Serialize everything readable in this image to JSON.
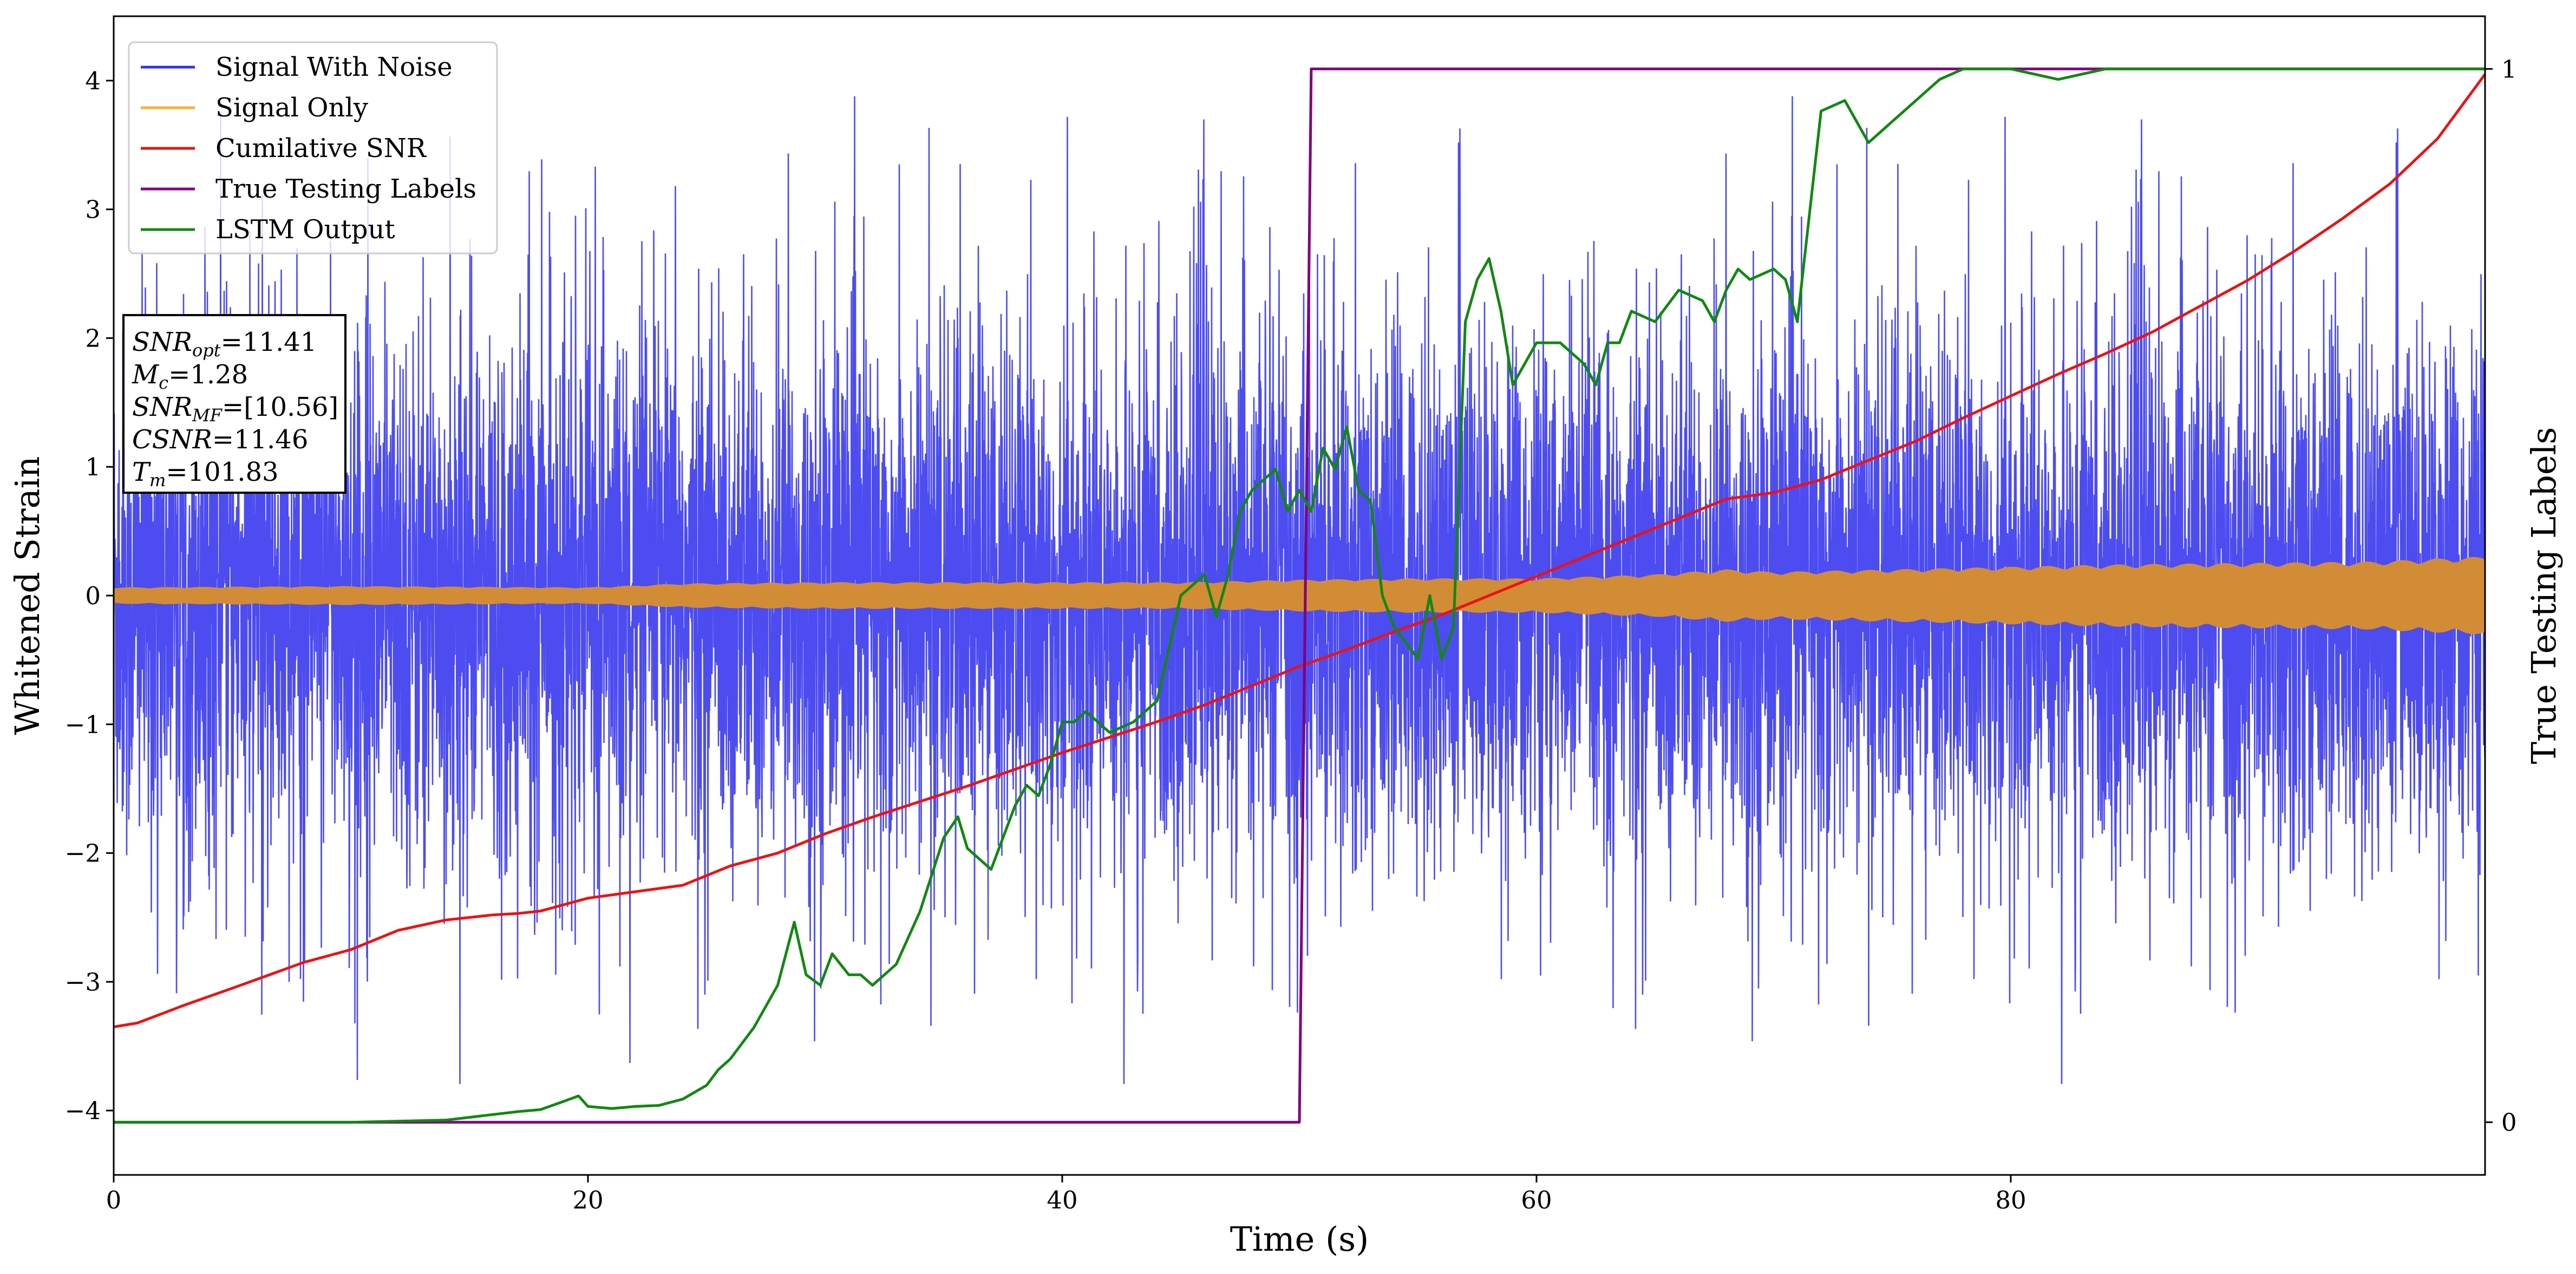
{
  "chart_data": {
    "type": "line",
    "xlabel": "Time (s)",
    "ylabel_left": "Whitened Strain",
    "ylabel_right": "True Testing Labels",
    "xlim": [
      0,
      100
    ],
    "ylim_left": [
      -4.5,
      4.5
    ],
    "ylim_right": [
      -0.05,
      1.05
    ],
    "x_ticks": [
      0,
      20,
      40,
      60,
      80
    ],
    "y_ticks_left": [
      -4,
      -3,
      -2,
      -1,
      0,
      1,
      2,
      3,
      4
    ],
    "y_ticks_right": [
      0,
      1
    ],
    "grid": false,
    "legend_position": "upper-left",
    "legend": [
      {
        "name": "Signal With Noise",
        "color": "#3333ee"
      },
      {
        "name": "Signal Only",
        "color": "#f5b335"
      },
      {
        "name": "Cumilative SNR",
        "color": "#ee1111"
      },
      {
        "name": "True Testing Labels",
        "color": "#800080"
      },
      {
        "name": "LSTM Output",
        "color": "#118811"
      }
    ],
    "annotation": [
      {
        "base": "SNR",
        "sub": "opt",
        "value": "=11.41"
      },
      {
        "base": "M",
        "sub": "c",
        "value": "=1.28"
      },
      {
        "base": "SNR",
        "sub": "MF",
        "value": "=[10.56]"
      },
      {
        "base": "CSNR",
        "sub": "",
        "value": "=11.46"
      },
      {
        "base": "T",
        "sub": "m",
        "value": "=101.83"
      }
    ],
    "series": [
      {
        "name": "Signal With Noise",
        "axis": "left",
        "color": "#3333ee",
        "style": "dense-noise",
        "typical_amplitude": 1.3,
        "max_amplitude": 4.0,
        "x_range": [
          0,
          100
        ]
      },
      {
        "name": "Signal Only",
        "axis": "left",
        "color": "#f5b335",
        "style": "envelope",
        "x": [
          0,
          10,
          20,
          24,
          30,
          40,
          45,
          50,
          55,
          60,
          65,
          68,
          70,
          75,
          80,
          85,
          90,
          95,
          100
        ],
        "amplitude": [
          0.06,
          0.07,
          0.06,
          0.09,
          0.1,
          0.1,
          0.1,
          0.12,
          0.13,
          0.13,
          0.16,
          0.2,
          0.18,
          0.2,
          0.22,
          0.24,
          0.25,
          0.26,
          0.3
        ]
      },
      {
        "name": "Cumilative SNR",
        "axis": "left",
        "color": "#ee1111",
        "x": [
          0,
          1,
          2,
          3,
          5,
          8,
          10,
          12,
          14,
          16,
          17,
          18,
          20,
          22,
          24,
          26,
          28,
          30,
          32,
          34,
          36,
          38,
          40,
          42,
          44,
          46,
          48,
          50,
          52,
          54,
          56,
          58,
          60,
          62,
          64,
          66,
          68,
          70,
          72,
          74,
          76,
          78,
          80,
          82,
          84,
          86,
          88,
          90,
          92,
          94,
          96,
          98,
          100
        ],
        "y": [
          -3.35,
          -3.32,
          -3.25,
          -3.18,
          -3.05,
          -2.85,
          -2.75,
          -2.6,
          -2.52,
          -2.48,
          -2.47,
          -2.45,
          -2.35,
          -2.3,
          -2.25,
          -2.1,
          -2.0,
          -1.85,
          -1.72,
          -1.6,
          -1.48,
          -1.35,
          -1.22,
          -1.1,
          -0.98,
          -0.85,
          -0.7,
          -0.55,
          -0.42,
          -0.28,
          -0.15,
          0.0,
          0.15,
          0.3,
          0.45,
          0.6,
          0.75,
          0.8,
          0.9,
          1.05,
          1.2,
          1.38,
          1.55,
          1.72,
          1.88,
          2.05,
          2.25,
          2.45,
          2.68,
          2.93,
          3.2,
          3.55,
          4.05
        ]
      },
      {
        "name": "True Testing Labels",
        "axis": "right",
        "color": "#800080",
        "x": [
          0,
          50.0,
          50.5,
          100
        ],
        "y": [
          0,
          0,
          1,
          1
        ]
      },
      {
        "name": "LSTM Output",
        "axis": "right",
        "color": "#118811",
        "x": [
          0,
          10,
          14,
          17,
          18,
          19,
          19.6,
          20,
          21,
          22,
          23,
          24,
          25,
          25.5,
          26,
          27,
          28,
          28.7,
          29.2,
          29.8,
          30.3,
          31,
          31.5,
          32,
          33,
          34,
          35,
          35.6,
          36,
          37,
          38,
          38.5,
          39,
          39.5,
          40,
          40.5,
          41,
          41.5,
          42,
          43,
          44,
          45,
          46,
          46.5,
          47,
          47.5,
          48,
          49,
          49.5,
          50,
          50.5,
          51,
          51.5,
          52,
          52.5,
          53,
          53.5,
          54,
          55,
          55.5,
          56,
          56.5,
          57,
          57.5,
          58,
          58.5,
          59,
          60,
          61,
          62,
          62.5,
          63,
          63.5,
          64,
          65,
          66,
          67,
          67.5,
          68,
          68.5,
          69,
          70,
          70.5,
          71,
          72,
          73,
          74,
          75,
          76,
          77,
          78,
          80,
          82,
          84,
          86,
          88,
          90,
          92,
          95,
          100
        ],
        "y": [
          0,
          0,
          0.002,
          0.01,
          0.012,
          0.02,
          0.025,
          0.015,
          0.013,
          0.015,
          0.016,
          0.022,
          0.035,
          0.05,
          0.06,
          0.09,
          0.13,
          0.19,
          0.14,
          0.13,
          0.16,
          0.14,
          0.14,
          0.13,
          0.15,
          0.2,
          0.27,
          0.29,
          0.26,
          0.24,
          0.3,
          0.32,
          0.31,
          0.34,
          0.38,
          0.38,
          0.39,
          0.38,
          0.37,
          0.38,
          0.4,
          0.5,
          0.52,
          0.48,
          0.52,
          0.58,
          0.6,
          0.62,
          0.58,
          0.6,
          0.58,
          0.64,
          0.62,
          0.66,
          0.6,
          0.59,
          0.5,
          0.47,
          0.44,
          0.5,
          0.44,
          0.47,
          0.76,
          0.8,
          0.82,
          0.77,
          0.7,
          0.74,
          0.74,
          0.72,
          0.7,
          0.74,
          0.74,
          0.77,
          0.76,
          0.79,
          0.78,
          0.76,
          0.79,
          0.81,
          0.8,
          0.81,
          0.8,
          0.76,
          0.96,
          0.97,
          0.93,
          0.95,
          0.97,
          0.99,
          1.0,
          1.0,
          0.99,
          1.0,
          1.0,
          1.0,
          1.0,
          1.0,
          1.0,
          1.0
        ]
      }
    ]
  }
}
